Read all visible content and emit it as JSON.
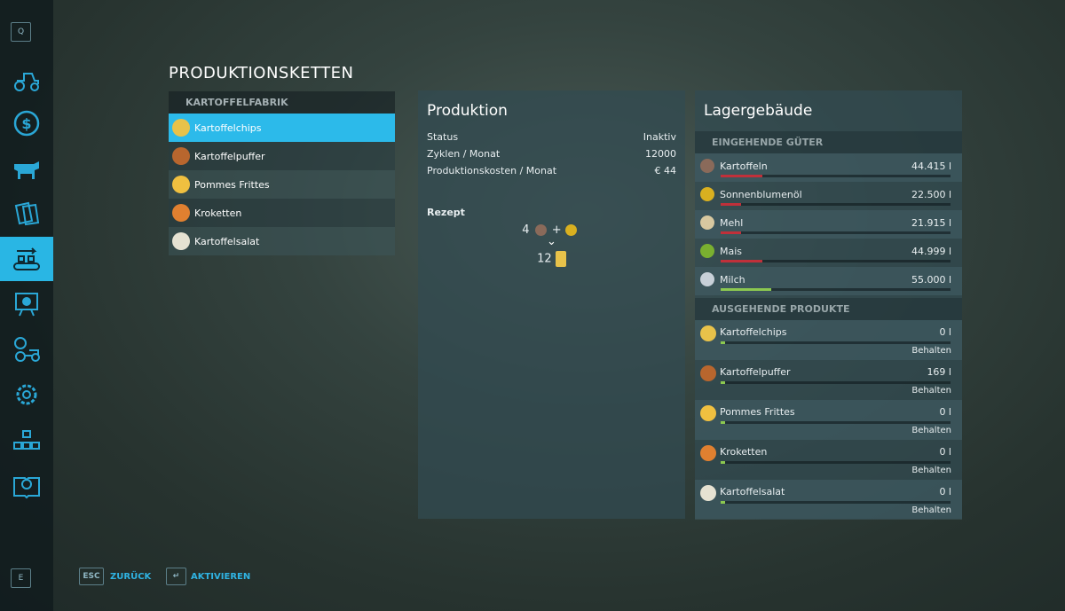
{
  "sidebar": {
    "top_key": "Q",
    "bottom_key": "E",
    "items": [
      {
        "icon": "tractor-icon"
      },
      {
        "icon": "dollar-icon"
      },
      {
        "icon": "cow-icon"
      },
      {
        "icon": "contracts-icon"
      },
      {
        "icon": "production-chain-icon",
        "selected": true
      },
      {
        "icon": "presentation-icon"
      },
      {
        "icon": "gear-tractor-icon"
      },
      {
        "icon": "gear-icon"
      },
      {
        "icon": "hierarchy-icon"
      },
      {
        "icon": "help-book-icon"
      }
    ]
  },
  "page_title": "PRODUKTIONSKETTEN",
  "chains": {
    "header": "KARTOFFELFABRIK",
    "items": [
      {
        "label": "Kartoffelchips",
        "color": "#e8c24a",
        "selected": true
      },
      {
        "label": "Kartoffelpuffer",
        "color": "#b8662e"
      },
      {
        "label": "Pommes Frittes",
        "color": "#f0c040"
      },
      {
        "label": "Kroketten",
        "color": "#e08030"
      },
      {
        "label": "Kartoffelsalat",
        "color": "#e6e2d2"
      }
    ]
  },
  "production": {
    "title": "Produktion",
    "rows": [
      {
        "label": "Status",
        "value": "Inaktiv"
      },
      {
        "label": "Zyklen / Monat",
        "value": "12000"
      },
      {
        "label": "Produktionskosten / Monat",
        "value": "€ 44"
      }
    ],
    "recipe_label": "Rezept",
    "input_amount": "4",
    "plus": "+",
    "arrow": "⌄",
    "output_amount": "12"
  },
  "storage": {
    "title": "Lagergebäude",
    "incoming_header": "EINGEHENDE GÜTER",
    "incoming": [
      {
        "name": "Kartoffeln",
        "value": "44.415 l",
        "fill": 0.18,
        "bar_color": "#c0303a",
        "icon_color": "#8a6a5a"
      },
      {
        "name": "Sonnenblumenöl",
        "value": "22.500 l",
        "fill": 0.09,
        "bar_color": "#c0303a",
        "icon_color": "#d9b020"
      },
      {
        "name": "Mehl",
        "value": "21.915 l",
        "fill": 0.09,
        "bar_color": "#c0303a",
        "icon_color": "#d8c8a0"
      },
      {
        "name": "Mais",
        "value": "44.999 l",
        "fill": 0.18,
        "bar_color": "#c0303a",
        "icon_color": "#7ab030"
      },
      {
        "name": "Milch",
        "value": "55.000 l",
        "fill": 0.22,
        "bar_color": "#8cc850",
        "icon_color": "#c8d0d8"
      }
    ],
    "outgoing_header": "AUSGEHENDE PRODUKTE",
    "outgoing": [
      {
        "name": "Kartoffelchips",
        "value": "0 l",
        "mode": "Behalten",
        "fill": 0.02,
        "icon_color": "#e8c24a"
      },
      {
        "name": "Kartoffelpuffer",
        "value": "169 l",
        "mode": "Behalten",
        "fill": 0.02,
        "icon_color": "#b8662e"
      },
      {
        "name": "Pommes Frittes",
        "value": "0 l",
        "mode": "Behalten",
        "fill": 0.02,
        "icon_color": "#f0c040"
      },
      {
        "name": "Kroketten",
        "value": "0 l",
        "mode": "Behalten",
        "fill": 0.02,
        "icon_color": "#e08030"
      },
      {
        "name": "Kartoffelsalat",
        "value": "0 l",
        "mode": "Behalten",
        "fill": 0.02,
        "icon_color": "#e6e2d2"
      }
    ]
  },
  "footer": {
    "back_key": "ESC",
    "back_label": "ZURÜCK",
    "activate_key": "↵",
    "activate_label": "AKTIVIEREN"
  },
  "colors": {
    "accent": "#29b6e4",
    "bar_fill_good": "#8cc850",
    "bar_fill_low": "#c0303a"
  }
}
